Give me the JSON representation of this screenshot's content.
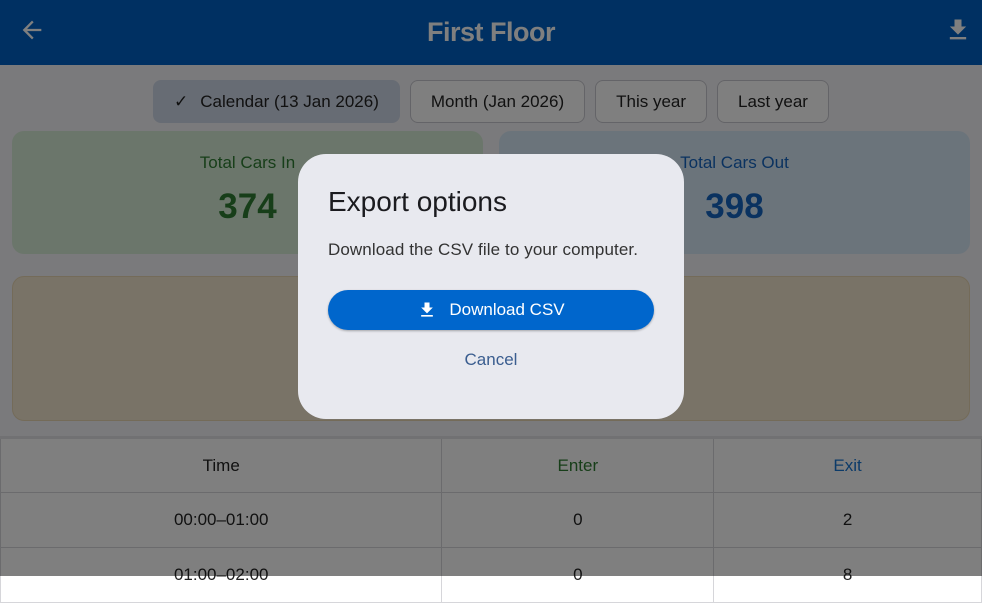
{
  "header": {
    "title": "First Floor",
    "back_icon": "arrow-left-icon",
    "download_icon": "download-icon"
  },
  "filters": [
    {
      "label": "Calendar (13 Jan 2026)",
      "selected": true
    },
    {
      "label": "Month (Jan 2026)",
      "selected": false
    },
    {
      "label": "This year",
      "selected": false
    },
    {
      "label": "Last year",
      "selected": false
    }
  ],
  "stats": {
    "in": {
      "label": "Total Cars In",
      "value": "374"
    },
    "out": {
      "label": "Total Cars Out",
      "value": "398"
    }
  },
  "table": {
    "headers": [
      "Time",
      "Enter",
      "Exit"
    ],
    "rows": [
      [
        "00:00–01:00",
        "0",
        "2"
      ],
      [
        "01:00–02:00",
        "0",
        "8"
      ]
    ]
  },
  "dialog": {
    "title": "Export options",
    "message": "Download the CSV file to your computer.",
    "download_label": "Download CSV",
    "cancel_label": "Cancel"
  },
  "colors": {
    "primary": "#0060c4",
    "enter": "#2e7d32",
    "exit": "#1976d2"
  }
}
